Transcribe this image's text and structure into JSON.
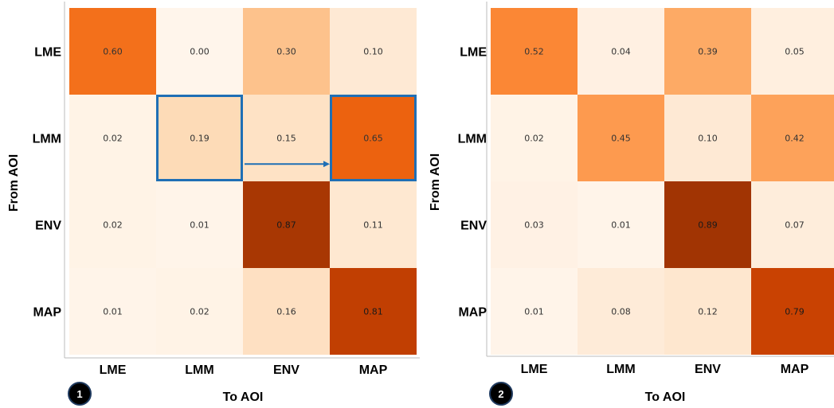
{
  "chart_data": [
    {
      "type": "heatmap",
      "badge": "1",
      "xlabel": "To AOI",
      "ylabel": "From AOI",
      "rows": [
        "LME",
        "LMM",
        "ENV",
        "MAP"
      ],
      "cols": [
        "LME",
        "LMM",
        "ENV",
        "MAP"
      ],
      "values": [
        [
          0.6,
          0.0,
          0.3,
          0.1
        ],
        [
          0.02,
          0.19,
          0.15,
          0.65
        ],
        [
          0.02,
          0.01,
          0.87,
          0.11
        ],
        [
          0.01,
          0.02,
          0.16,
          0.81
        ]
      ],
      "value_labels": [
        [
          "0.60",
          "0.00",
          "0.30",
          "0.10"
        ],
        [
          "0.02",
          "0.19",
          "0.15",
          "0.65"
        ],
        [
          "0.02",
          "0.01",
          "0.87",
          "0.11"
        ],
        [
          "0.01",
          "0.02",
          "0.16",
          "0.81"
        ]
      ],
      "highlights": [
        {
          "row": "LMM",
          "col": "LMM",
          "color": "#1f6fb5"
        },
        {
          "row": "LMM",
          "col": "MAP",
          "color": "#1f6fb5"
        }
      ],
      "arrow": {
        "from": {
          "row": "LMM",
          "col": "ENV"
        },
        "to": {
          "row": "LMM",
          "col": "MAP"
        },
        "color": "#1f6fb5"
      }
    },
    {
      "type": "heatmap",
      "badge": "2",
      "xlabel": "To AOI",
      "ylabel": "From AOI",
      "rows": [
        "LME",
        "LMM",
        "ENV",
        "MAP"
      ],
      "cols": [
        "LME",
        "LMM",
        "ENV",
        "MAP"
      ],
      "values": [
        [
          0.52,
          0.04,
          0.39,
          0.05
        ],
        [
          0.02,
          0.45,
          0.1,
          0.42
        ],
        [
          0.03,
          0.01,
          0.89,
          0.07
        ],
        [
          0.01,
          0.08,
          0.12,
          0.79
        ]
      ],
      "value_labels": [
        [
          "0.52",
          "0.04",
          "0.39",
          "0.05"
        ],
        [
          "0.02",
          "0.45",
          "0.10",
          "0.42"
        ],
        [
          "0.03",
          "0.01",
          "0.89",
          "0.07"
        ],
        [
          "0.01",
          "0.08",
          "0.12",
          "0.79"
        ]
      ],
      "highlights": [],
      "arrow": null
    }
  ],
  "colors": {
    "scale": [
      "#fff5eb",
      "#fee6ce",
      "#fdd0a2",
      "#fdae6b",
      "#fd8d3c",
      "#f16913",
      "#d94801",
      "#a63603",
      "#7f2704"
    ],
    "badge_fill": "#000000",
    "badge_stroke": "#1f3a5f"
  }
}
